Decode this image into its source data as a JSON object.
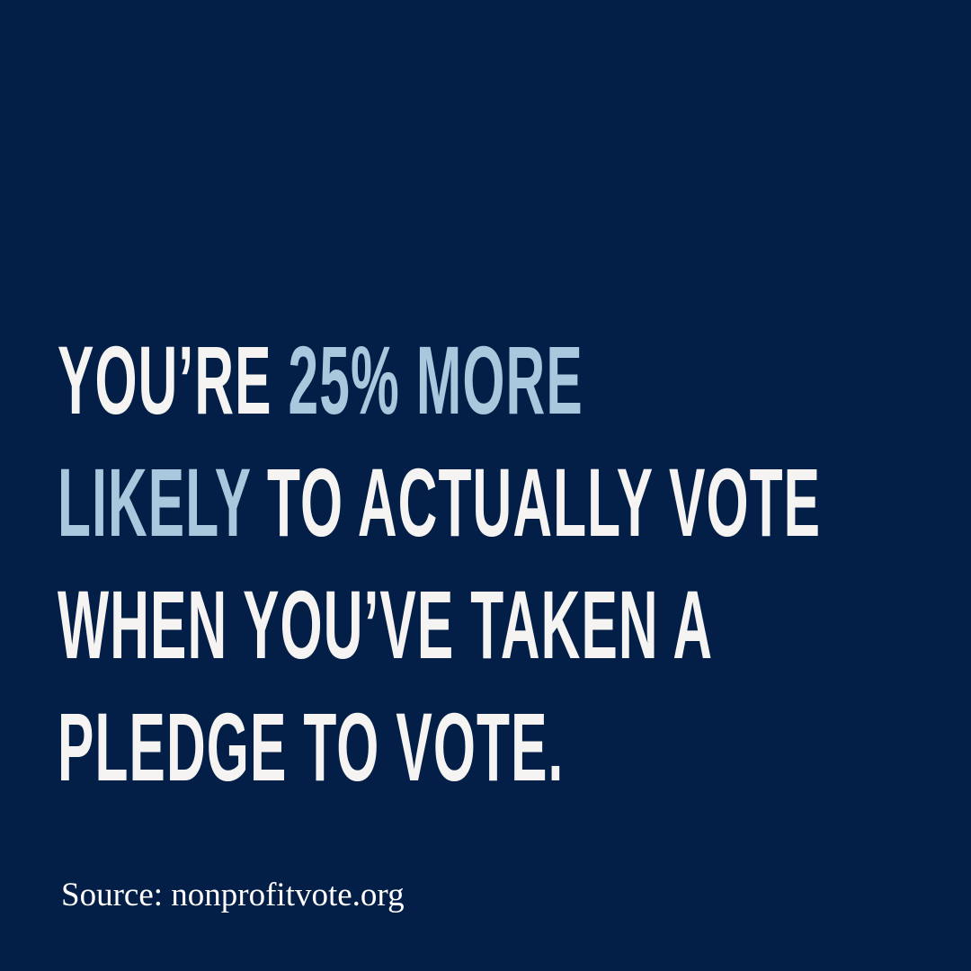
{
  "colors": {
    "background": "#041f47",
    "text": "#f5f4f2",
    "highlight": "#a8c8dd"
  },
  "headline": {
    "line1": {
      "part1": "YOU’RE ",
      "highlight1": "25% MORE"
    },
    "line2": {
      "highlight2": "LIKELY",
      "part2": " TO ACTUALLY VOTE"
    },
    "line3": "WHEN YOU’VE TAKEN A",
    "line4": "PLEDGE TO VOTE."
  },
  "source": "Source: nonprofitvote.org"
}
